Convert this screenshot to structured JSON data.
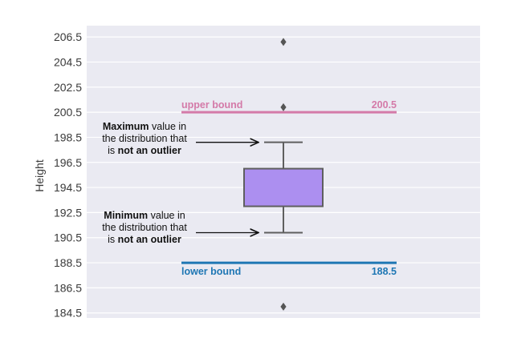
{
  "chart_data": {
    "type": "box",
    "ylabel": "Height",
    "yticks": [
      206.5,
      204.5,
      202.5,
      200.5,
      198.5,
      196.5,
      194.5,
      192.5,
      190.5,
      188.5,
      186.5,
      184.5
    ],
    "ylim": [
      184.1,
      207.4
    ],
    "grid": true,
    "box": {
      "q1": 193.0,
      "q3": 196.0,
      "whisker_low": 190.9,
      "whisker_high": 198.1,
      "median_hidden_in_q1_edge": true,
      "outliers": [
        206.1,
        200.9,
        185.0
      ],
      "color": "#ac8ff0"
    },
    "bounds": [
      {
        "label": "upper bound",
        "value_text": "200.5",
        "value": 200.5,
        "color": "#d47aa8"
      },
      {
        "label": "lower bound",
        "value_text": "188.5",
        "value": 188.5,
        "color": "#1f77b4"
      }
    ],
    "annotations": [
      {
        "bold": "Maximum",
        "line1_rest": " value in",
        "line2": "the distribution that",
        "line3_pre": "is ",
        "line3_bold": "not an outlier",
        "points_to": 198.1
      },
      {
        "bold": "Minimum",
        "line1_rest": " value in",
        "line2": "the distribution that",
        "line3_pre": "is ",
        "line3_bold": "not an outlier",
        "points_to": 190.9
      }
    ]
  }
}
